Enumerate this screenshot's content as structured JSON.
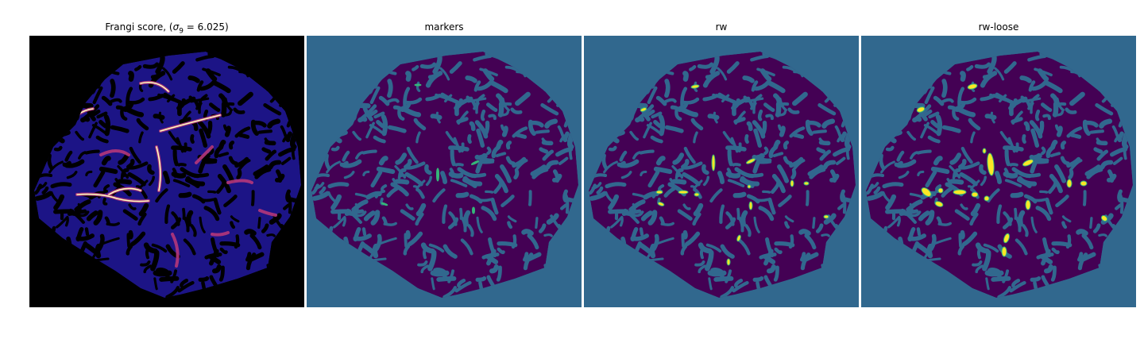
{
  "figure": {
    "panels": [
      {
        "id": "frangi",
        "title_prefix": "Frangi score, (",
        "title_sigma": "σ",
        "title_sub": "9",
        "title_suffix": " = 6.025)"
      },
      {
        "id": "markers",
        "title": "markers"
      },
      {
        "id": "rw",
        "title": "rw"
      },
      {
        "id": "rw-loose",
        "title": "rw-loose"
      }
    ],
    "colors": {
      "frangi_background": "#000000",
      "frangi_low": "#1c1486",
      "frangi_mid": "#b5367a",
      "frangi_high": "#fcfdbf",
      "label_background": "#31688e",
      "label_foreground": "#440154",
      "label_marker": "#35b779",
      "label_vessel": "#fde725"
    }
  }
}
